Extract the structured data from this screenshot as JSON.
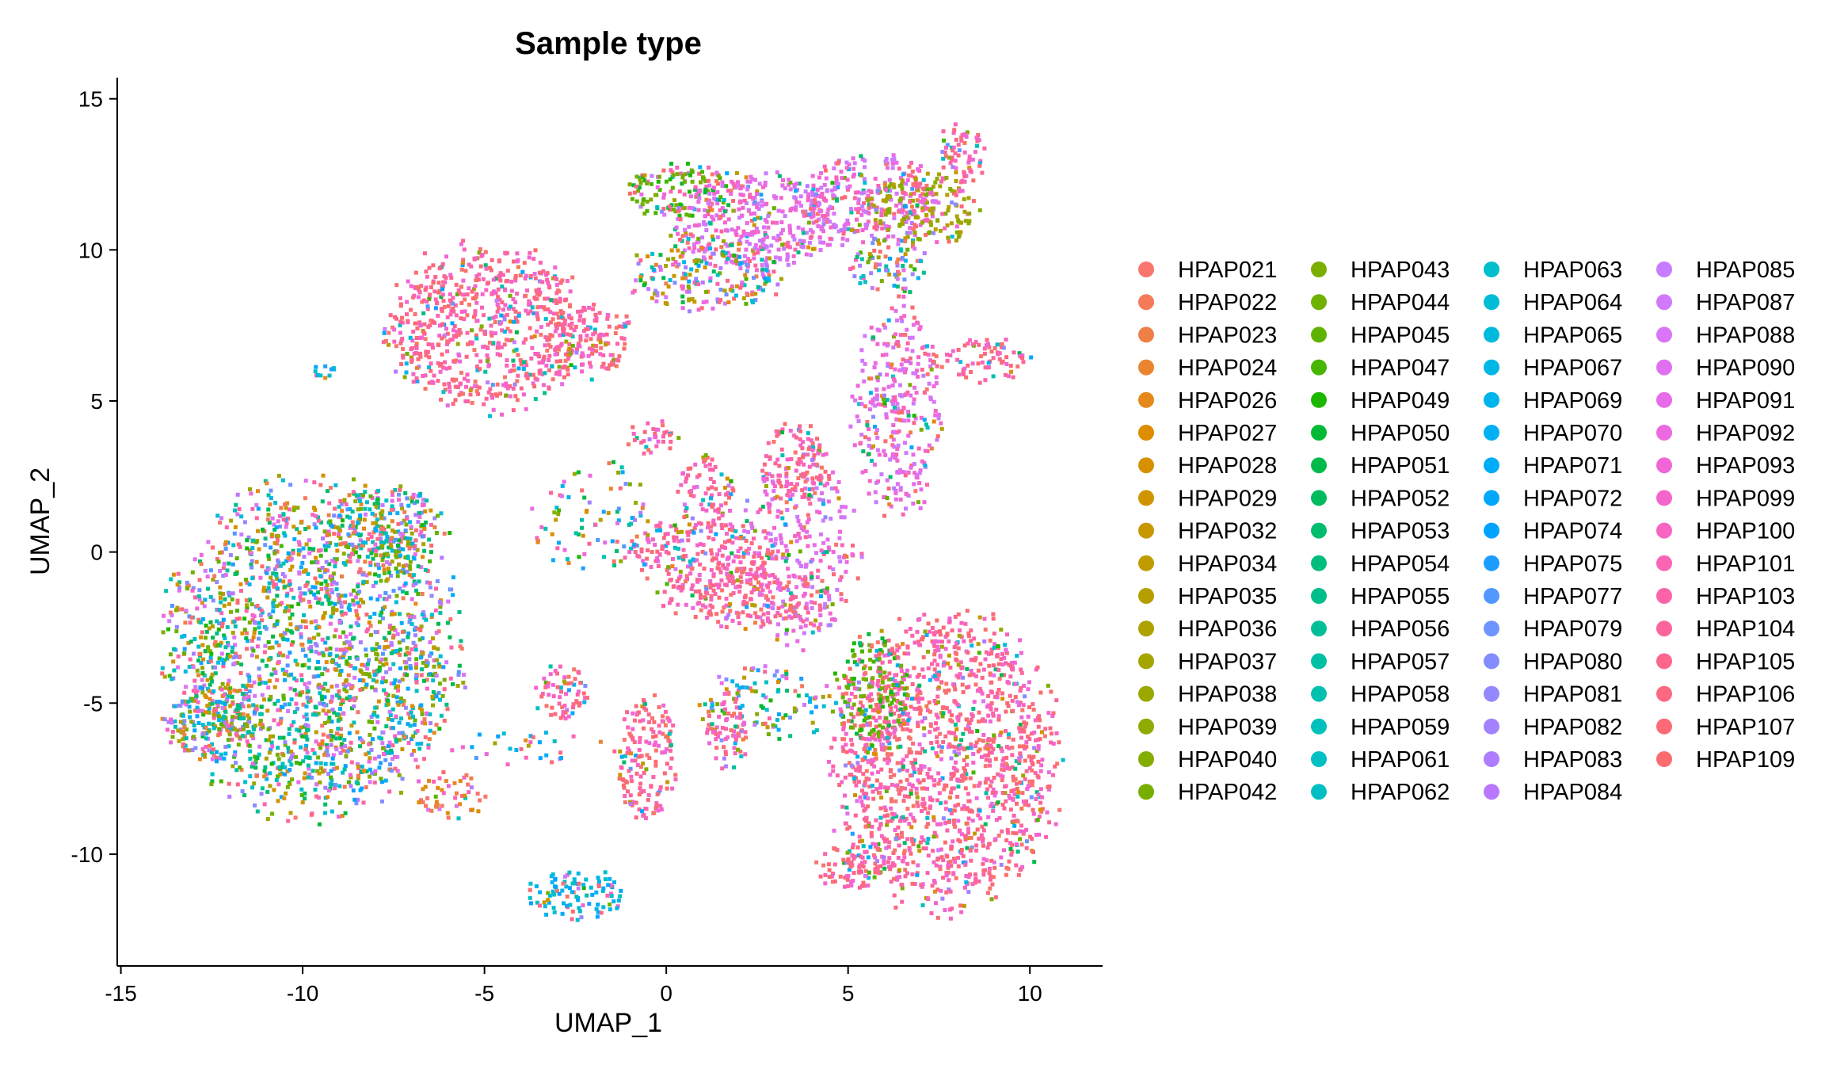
{
  "chart_data": {
    "type": "scatter",
    "title": "Sample type",
    "xlabel": "UMAP_1",
    "ylabel": "UMAP_2",
    "xlim": [
      -15.1,
      12
    ],
    "ylim": [
      -13.7,
      15.7
    ],
    "xticks": [
      -15,
      -10,
      -5,
      0,
      5,
      10
    ],
    "yticks": [
      -10,
      -5,
      0,
      5,
      10,
      15
    ],
    "grid": false,
    "legend_position": "right",
    "legend_columns": 4,
    "series": [
      {
        "name": "HPAP021",
        "color": "#F8766D"
      },
      {
        "name": "HPAP022",
        "color": "#F47A5A"
      },
      {
        "name": "HPAP023",
        "color": "#EF7F46"
      },
      {
        "name": "HPAP024",
        "color": "#EA842F"
      },
      {
        "name": "HPAP026",
        "color": "#E4891A"
      },
      {
        "name": "HPAP027",
        "color": "#DE8C00"
      },
      {
        "name": "HPAP028",
        "color": "#D79000"
      },
      {
        "name": "HPAP029",
        "color": "#D09400"
      },
      {
        "name": "HPAP032",
        "color": "#C89700"
      },
      {
        "name": "HPAP034",
        "color": "#C09B00"
      },
      {
        "name": "HPAP035",
        "color": "#B79E00"
      },
      {
        "name": "HPAP036",
        "color": "#AEA200"
      },
      {
        "name": "HPAP037",
        "color": "#A4A500"
      },
      {
        "name": "HPAP038",
        "color": "#9AA800"
      },
      {
        "name": "HPAP039",
        "color": "#8FAA00"
      },
      {
        "name": "HPAP040",
        "color": "#83AD00"
      },
      {
        "name": "HPAP042",
        "color": "#76AF00"
      },
      {
        "name": "HPAP043",
        "color": "#7CAE00"
      },
      {
        "name": "HPAP044",
        "color": "#6FB100"
      },
      {
        "name": "HPAP045",
        "color": "#5EB300"
      },
      {
        "name": "HPAP047",
        "color": "#48B500"
      },
      {
        "name": "HPAP049",
        "color": "#1EB700"
      },
      {
        "name": "HPAP050",
        "color": "#00B935"
      },
      {
        "name": "HPAP051",
        "color": "#00BA4B"
      },
      {
        "name": "HPAP052",
        "color": "#00BB5E"
      },
      {
        "name": "HPAP053",
        "color": "#00BC6E"
      },
      {
        "name": "HPAP054",
        "color": "#00BD7D"
      },
      {
        "name": "HPAP055",
        "color": "#00BE8B"
      },
      {
        "name": "HPAP056",
        "color": "#00BF98"
      },
      {
        "name": "HPAP057",
        "color": "#00C0A4"
      },
      {
        "name": "HPAP058",
        "color": "#00C0B0"
      },
      {
        "name": "HPAP059",
        "color": "#00C0BB"
      },
      {
        "name": "HPAP061",
        "color": "#00C0C5"
      },
      {
        "name": "HPAP062",
        "color": "#00BFC4"
      },
      {
        "name": "HPAP063",
        "color": "#00BECC"
      },
      {
        "name": "HPAP064",
        "color": "#00BCD5"
      },
      {
        "name": "HPAP065",
        "color": "#00BADD"
      },
      {
        "name": "HPAP067",
        "color": "#00B7E5"
      },
      {
        "name": "HPAP069",
        "color": "#00B4EC"
      },
      {
        "name": "HPAP070",
        "color": "#00B0F3"
      },
      {
        "name": "HPAP071",
        "color": "#00ACF8"
      },
      {
        "name": "HPAP072",
        "color": "#00A8FC"
      },
      {
        "name": "HPAP074",
        "color": "#00A3FF"
      },
      {
        "name": "HPAP075",
        "color": "#1C9DFF"
      },
      {
        "name": "HPAP077",
        "color": "#5398FF"
      },
      {
        "name": "HPAP079",
        "color": "#6F93FF"
      },
      {
        "name": "HPAP080",
        "color": "#848DFF"
      },
      {
        "name": "HPAP081",
        "color": "#9488FF"
      },
      {
        "name": "HPAP082",
        "color": "#A282FF"
      },
      {
        "name": "HPAP083",
        "color": "#AE7CFF"
      },
      {
        "name": "HPAP084",
        "color": "#B877FD"
      },
      {
        "name": "HPAP085",
        "color": "#C77CFF"
      },
      {
        "name": "HPAP087",
        "color": "#D079FB"
      },
      {
        "name": "HPAP088",
        "color": "#D975F6"
      },
      {
        "name": "HPAP090",
        "color": "#E070F0"
      },
      {
        "name": "HPAP091",
        "color": "#E76CE8"
      },
      {
        "name": "HPAP092",
        "color": "#EC69E1"
      },
      {
        "name": "HPAP093",
        "color": "#F066D7"
      },
      {
        "name": "HPAP099",
        "color": "#F465CC"
      },
      {
        "name": "HPAP100",
        "color": "#F764C1"
      },
      {
        "name": "HPAP101",
        "color": "#F964B5"
      },
      {
        "name": "HPAP103",
        "color": "#FB64A8"
      },
      {
        "name": "HPAP104",
        "color": "#FC659B"
      },
      {
        "name": "HPAP105",
        "color": "#FC668D"
      },
      {
        "name": "HPAP106",
        "color": "#FC6880"
      },
      {
        "name": "HPAP107",
        "color": "#FB6A76"
      },
      {
        "name": "HPAP109",
        "color": "#FA6C6E"
      }
    ],
    "clusters": [
      {
        "cx": -9.8,
        "cy": -3.2,
        "rx": 3.8,
        "ry": 5.2,
        "density": 1.0,
        "mix": "even"
      },
      {
        "cx": -12.6,
        "cy": -5.6,
        "rx": 1.3,
        "ry": 1.2,
        "density": 1.0,
        "mix": "even"
      },
      {
        "cx": -7.6,
        "cy": 1.0,
        "rx": 1.6,
        "ry": 1.3,
        "density": 0.9,
        "mix": "even"
      },
      {
        "cx": -6.0,
        "cy": -8.0,
        "rx": 0.9,
        "ry": 0.8,
        "density": 0.7,
        "mix": "warm"
      },
      {
        "cx": -5.0,
        "cy": 7.5,
        "rx": 2.7,
        "ry": 2.6,
        "density": 1.0,
        "mix": "pink"
      },
      {
        "cx": -2.2,
        "cy": 7.0,
        "rx": 1.2,
        "ry": 1.2,
        "density": 0.9,
        "mix": "pink"
      },
      {
        "cx": 0.3,
        "cy": 12.0,
        "rx": 1.4,
        "ry": 0.9,
        "density": 1.0,
        "mix": "green"
      },
      {
        "cx": 2.4,
        "cy": 11.0,
        "rx": 2.4,
        "ry": 1.6,
        "density": 1.0,
        "mix": "magenta"
      },
      {
        "cx": 1.0,
        "cy": 9.2,
        "rx": 2.0,
        "ry": 1.2,
        "density": 0.8,
        "mix": "even"
      },
      {
        "cx": 5.4,
        "cy": 11.8,
        "rx": 2.0,
        "ry": 1.4,
        "density": 1.0,
        "mix": "magenta"
      },
      {
        "cx": 7.0,
        "cy": 11.4,
        "rx": 1.4,
        "ry": 1.2,
        "density": 1.0,
        "mix": "olive"
      },
      {
        "cx": 8.1,
        "cy": 13.2,
        "rx": 0.6,
        "ry": 1.1,
        "density": 1.0,
        "mix": "pink"
      },
      {
        "cx": 6.0,
        "cy": 9.5,
        "rx": 1.1,
        "ry": 0.9,
        "density": 0.8,
        "mix": "even"
      },
      {
        "cx": 6.3,
        "cy": 4.8,
        "rx": 1.2,
        "ry": 3.5,
        "density": 0.75,
        "mix": "magenta"
      },
      {
        "cx": 8.6,
        "cy": 6.4,
        "rx": 1.4,
        "ry": 0.7,
        "density": 0.8,
        "mix": "pink"
      },
      {
        "cx": 3.6,
        "cy": 0.2,
        "rx": 1.6,
        "ry": 3.0,
        "density": 0.6,
        "mix": "magenta"
      },
      {
        "cx": 3.5,
        "cy": 3.0,
        "rx": 0.9,
        "ry": 1.3,
        "density": 1.0,
        "mix": "pink"
      },
      {
        "cx": 1.0,
        "cy": 2.0,
        "rx": 0.8,
        "ry": 1.2,
        "density": 0.8,
        "mix": "pink"
      },
      {
        "cx": 1.0,
        "cy": 0.0,
        "rx": 1.9,
        "ry": 1.2,
        "density": 1.0,
        "mix": "pink"
      },
      {
        "cx": 2.2,
        "cy": -1.5,
        "rx": 2.3,
        "ry": 0.9,
        "density": 0.9,
        "mix": "pink"
      },
      {
        "cx": -0.5,
        "cy": 3.8,
        "rx": 0.7,
        "ry": 0.6,
        "density": 0.8,
        "mix": "pink"
      },
      {
        "cx": 7.6,
        "cy": -6.8,
        "rx": 3.0,
        "ry": 4.8,
        "density": 1.0,
        "mix": "pink"
      },
      {
        "cx": 5.6,
        "cy": -4.6,
        "rx": 1.0,
        "ry": 2.0,
        "density": 0.85,
        "mix": "green"
      },
      {
        "cx": 5.0,
        "cy": -10.3,
        "rx": 0.9,
        "ry": 0.8,
        "density": 1.0,
        "mix": "pink"
      },
      {
        "cx": -0.6,
        "cy": -6.8,
        "rx": 0.8,
        "ry": 2.0,
        "density": 1.0,
        "mix": "pink"
      },
      {
        "cx": 1.6,
        "cy": -5.8,
        "rx": 0.6,
        "ry": 1.3,
        "density": 0.9,
        "mix": "pink"
      },
      {
        "cx": -2.9,
        "cy": -4.6,
        "rx": 0.8,
        "ry": 0.9,
        "density": 0.9,
        "mix": "pink"
      },
      {
        "cx": 2.8,
        "cy": -5.0,
        "rx": 2.0,
        "ry": 1.2,
        "density": 0.45,
        "mix": "even"
      },
      {
        "cx": -2.5,
        "cy": -11.3,
        "rx": 1.4,
        "ry": 0.8,
        "density": 0.9,
        "mix": "cool"
      },
      {
        "cx": -9.5,
        "cy": 6.0,
        "rx": 0.4,
        "ry": 0.3,
        "density": 0.9,
        "mix": "cool"
      },
      {
        "cx": -4.0,
        "cy": -6.4,
        "rx": 2.0,
        "ry": 0.6,
        "density": 0.25,
        "mix": "cool"
      },
      {
        "cx": -2.0,
        "cy": 1.0,
        "rx": 1.8,
        "ry": 2.0,
        "density": 0.25,
        "mix": "even"
      }
    ]
  }
}
